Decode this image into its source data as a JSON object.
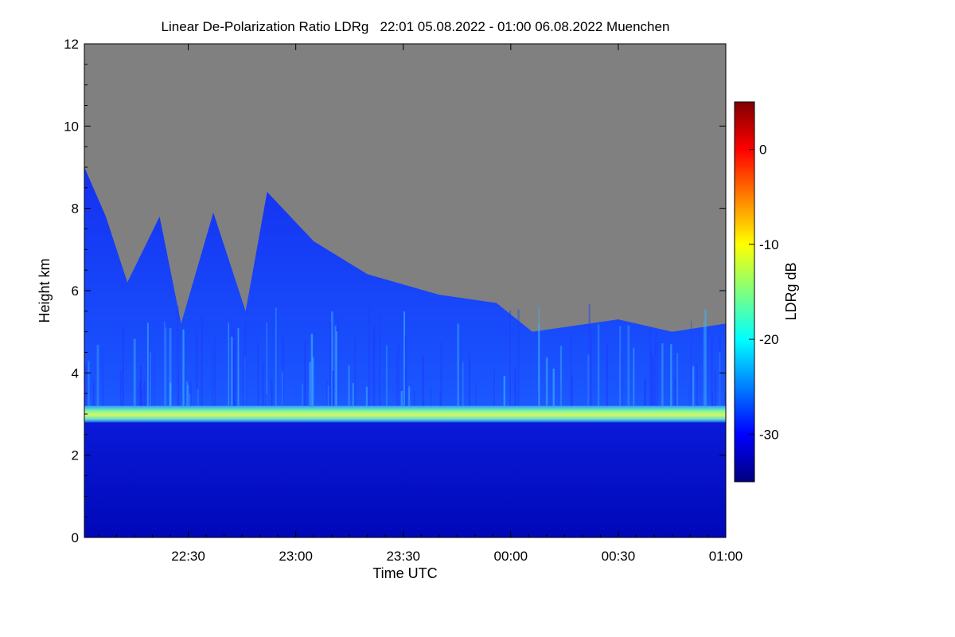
{
  "chart_data": {
    "type": "heatmap",
    "title": "Linear De-Polarization Ratio LDRg   22:01 05.08.2022 - 01:00 06.08.2022 Muenchen",
    "xlabel": "Time UTC",
    "ylabel": "Height km",
    "x_range_minutes_after_midnight_0508": [
      1321,
      1500
    ],
    "x_ticks": [
      {
        "label": "22:30",
        "minute": 1350
      },
      {
        "label": "23:00",
        "minute": 1380
      },
      {
        "label": "23:30",
        "minute": 1410
      },
      {
        "label": "00:00",
        "minute": 1440
      },
      {
        "label": "00:30",
        "minute": 1470
      },
      {
        "label": "01:00",
        "minute": 1500
      }
    ],
    "ylim": [
      0,
      12
    ],
    "y_ticks": [
      0,
      2,
      4,
      6,
      8,
      10,
      12
    ],
    "no_data_color": "#808080",
    "colorbar": {
      "label": "LDRg dB",
      "range": [
        -35,
        5
      ],
      "ticks": [
        0,
        -10,
        -20,
        -30
      ],
      "colormap": [
        "#00007f",
        "#0000ff",
        "#007fff",
        "#00ffff",
        "#7fff7f",
        "#ffff00",
        "#ff7f00",
        "#ff0000",
        "#7f0000"
      ]
    },
    "features": {
      "melting_layer_band": {
        "height_km": [
          2.8,
          3.2
        ],
        "ldr_db": -19
      },
      "cloud_top_profile": [
        {
          "minute": 1321,
          "top_km": 9.0
        },
        {
          "minute": 1327,
          "top_km": 7.8
        },
        {
          "minute": 1333,
          "top_km": 6.2
        },
        {
          "minute": 1342,
          "top_km": 7.8
        },
        {
          "minute": 1348,
          "top_km": 5.2
        },
        {
          "minute": 1357,
          "top_km": 7.9
        },
        {
          "minute": 1366,
          "top_km": 5.5
        },
        {
          "minute": 1372,
          "top_km": 8.4
        },
        {
          "minute": 1385,
          "top_km": 7.2
        },
        {
          "minute": 1400,
          "top_km": 6.4
        },
        {
          "minute": 1420,
          "top_km": 5.9
        },
        {
          "minute": 1436,
          "top_km": 5.7
        },
        {
          "minute": 1446,
          "top_km": 5.0
        },
        {
          "minute": 1470,
          "top_km": 5.3
        },
        {
          "minute": 1485,
          "top_km": 5.0
        },
        {
          "minute": 1500,
          "top_km": 5.2
        }
      ]
    }
  }
}
